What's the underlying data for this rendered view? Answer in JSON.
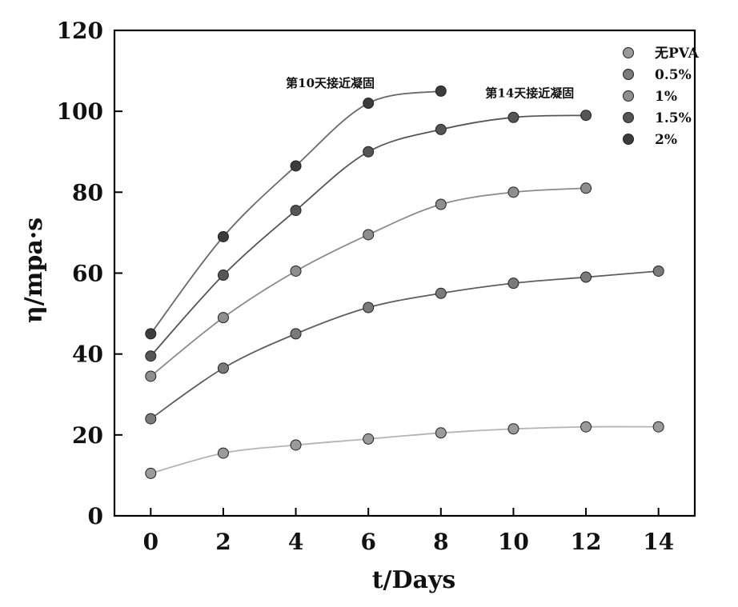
{
  "chart_data": {
    "type": "scatter",
    "title": "",
    "xlabel": "t/Days",
    "ylabel": "η/mpa·s",
    "xlim": [
      -1,
      15
    ],
    "ylim": [
      0,
      120
    ],
    "xticks": [
      0,
      2,
      4,
      6,
      8,
      10,
      12,
      14
    ],
    "yticks": [
      0,
      20,
      40,
      60,
      80,
      100,
      120
    ],
    "grid": false,
    "legend_position": "top-right",
    "series": [
      {
        "name": "无PVA",
        "color": "#9a9a9a",
        "line_color": "#b4b4b4",
        "x": [
          0,
          2,
          4,
          6,
          8,
          10,
          12,
          14
        ],
        "y": [
          10.5,
          15.5,
          17.5,
          19,
          20.5,
          21.5,
          22,
          22
        ]
      },
      {
        "name": "0.5%",
        "color": "#7a7a7a",
        "line_color": "#5e5e5e",
        "x": [
          0,
          2,
          4,
          6,
          8,
          10,
          12,
          14
        ],
        "y": [
          24,
          36.5,
          45,
          51.5,
          55,
          57.5,
          59,
          60.5
        ]
      },
      {
        "name": "1%",
        "color": "#8e8e8e",
        "line_color": "#8a8a8a",
        "x": [
          0,
          2,
          4,
          6,
          8,
          10,
          12
        ],
        "y": [
          34.5,
          49,
          60.5,
          69.5,
          77,
          80,
          81
        ]
      },
      {
        "name": "1.5%",
        "color": "#555555",
        "line_color": "#555555",
        "x": [
          0,
          2,
          4,
          6,
          8,
          10,
          12
        ],
        "y": [
          39.5,
          59.5,
          75.5,
          90,
          95.5,
          98.5,
          99
        ]
      },
      {
        "name": "2%",
        "color": "#3c3c3c",
        "line_color": "#6a6a6a",
        "x": [
          0,
          2,
          4,
          6,
          8
        ],
        "y": [
          45,
          69,
          86.5,
          102,
          105
        ]
      }
    ],
    "annotations": [
      {
        "text": "第10天接近凝固",
        "x": 4.95,
        "y": 106
      },
      {
        "text": "第14天接近凝固",
        "x": 10.45,
        "y": 103.5
      }
    ]
  }
}
